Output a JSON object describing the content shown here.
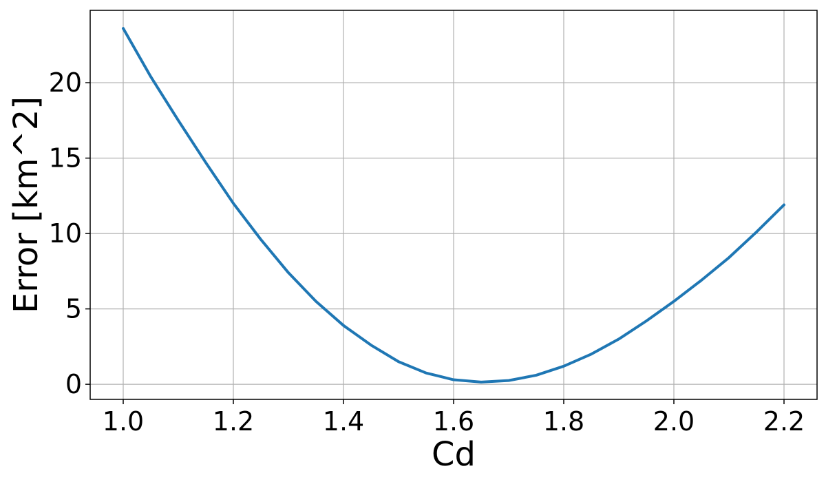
{
  "chart_data": {
    "type": "line",
    "title": "",
    "xlabel": "Cd",
    "ylabel": "Error [km^2]",
    "xlim": [
      0.94,
      2.26
    ],
    "ylim": [
      -1.0,
      24.8
    ],
    "x_ticks": [
      1.0,
      1.2,
      1.4,
      1.6,
      1.8,
      2.0,
      2.2
    ],
    "x_tick_labels": [
      "1.0",
      "1.2",
      "1.4",
      "1.6",
      "1.8",
      "2.0",
      "2.2"
    ],
    "y_ticks": [
      0,
      5,
      10,
      15,
      20
    ],
    "y_tick_labels": [
      "0",
      "5",
      "10",
      "15",
      "20"
    ],
    "grid": true,
    "series": [
      {
        "color": "#1f77b4",
        "x": [
          1.0,
          1.05,
          1.1,
          1.15,
          1.2,
          1.25,
          1.3,
          1.35,
          1.4,
          1.45,
          1.5,
          1.55,
          1.6,
          1.65,
          1.7,
          1.75,
          1.8,
          1.85,
          1.9,
          1.95,
          2.0,
          2.05,
          2.1,
          2.15,
          2.2
        ],
        "y": [
          23.6,
          20.4,
          17.5,
          14.7,
          12.0,
          9.6,
          7.4,
          5.5,
          3.9,
          2.6,
          1.5,
          0.75,
          0.3,
          0.15,
          0.25,
          0.6,
          1.2,
          2.0,
          3.0,
          4.2,
          5.5,
          6.9,
          8.4,
          10.1,
          11.9
        ]
      }
    ]
  }
}
